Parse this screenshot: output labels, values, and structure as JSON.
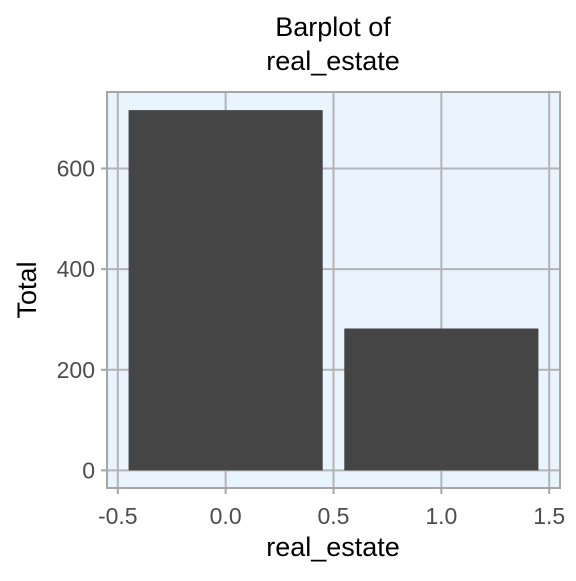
{
  "chart_data": {
    "type": "bar",
    "title_lines": [
      "Barplot of",
      "real_estate"
    ],
    "xlabel": "real_estate",
    "ylabel": "Total",
    "categories": [
      0,
      1
    ],
    "x": [
      0,
      1
    ],
    "values": [
      716,
      282
    ],
    "bar_width": 0.9,
    "xlim": [
      -0.55,
      1.55
    ],
    "ylim": [
      -35,
      752
    ],
    "xticks": [
      -0.5,
      0.0,
      0.5,
      1.0,
      1.5
    ],
    "xtick_labels": [
      "-0.5",
      "0.0",
      "0.5",
      "1.0",
      "1.5"
    ],
    "yticks": [
      0,
      200,
      400,
      600
    ],
    "ytick_labels": [
      "0",
      "200",
      "400",
      "600"
    ],
    "grid": true,
    "colors": {
      "bar": "#454545",
      "panel_bg": "#EAF4FF",
      "grid": "#B3B3B3",
      "border": "#A6A6A6",
      "text": "#000000",
      "tick_text": "#4D4D4D"
    }
  }
}
